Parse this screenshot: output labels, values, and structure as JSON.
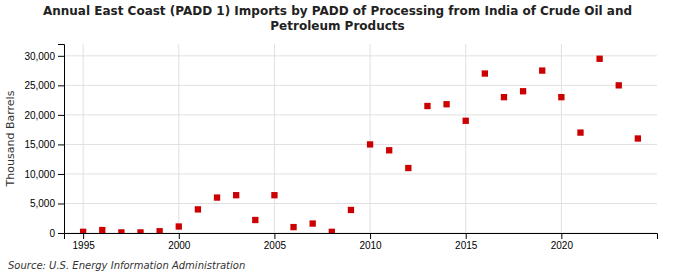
{
  "chart_data": {
    "type": "scatter",
    "title": "Annual East Coast (PADD 1) Imports by PADD of Processing from India of Crude Oil and\nPetroleum Products",
    "ylabel": "Thousand Barrels",
    "source": "Source: U.S. Energy Information Administration",
    "color": "#cc0000",
    "marker": "square",
    "grid": true,
    "xlim": [
      1994,
      2025
    ],
    "ylim": [
      0,
      32000
    ],
    "xticks": [
      1995,
      2000,
      2005,
      2010,
      2015,
      2020
    ],
    "yticks": [
      0,
      {
        "value": 5000,
        "label": "5,000"
      },
      {
        "value": 10000,
        "label": "10,000"
      },
      {
        "value": 15000,
        "label": "15,000"
      },
      {
        "value": 20000,
        "label": "20,000"
      },
      {
        "value": 25000,
        "label": "25,000"
      },
      {
        "value": 30000,
        "label": "30,000"
      }
    ],
    "x": [
      1995,
      1996,
      1997,
      1998,
      1999,
      2000,
      2001,
      2002,
      2003,
      2004,
      2005,
      2006,
      2007,
      2008,
      2009,
      2010,
      2011,
      2012,
      2013,
      2014,
      2015,
      2016,
      2017,
      2018,
      2019,
      2020,
      2021,
      2022,
      2023,
      2024
    ],
    "values": [
      200,
      500,
      100,
      100,
      300,
      1100,
      4000,
      6000,
      6400,
      2200,
      6400,
      1000,
      1600,
      200,
      3900,
      15000,
      14000,
      11000,
      21500,
      21800,
      19000,
      27000,
      23000,
      24000,
      27500,
      23000,
      17000,
      29500,
      25000,
      16000
    ]
  }
}
